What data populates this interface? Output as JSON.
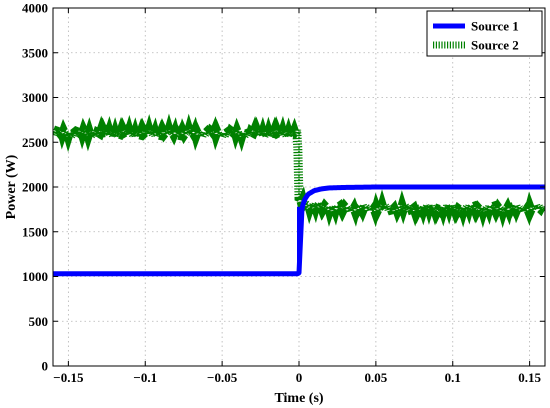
{
  "chart_data": {
    "type": "line",
    "xlabel": "Time (s)",
    "ylabel": "Power (W)",
    "xlim": [
      -0.16,
      0.16
    ],
    "ylim": [
      0,
      4000
    ],
    "x_ticks": [
      -0.15,
      -0.1,
      -0.05,
      0,
      0.05,
      0.1,
      0.15
    ],
    "x_tick_labels": [
      "−0.15",
      "−0.1",
      "−0.05",
      "0",
      "0.05",
      "0.1",
      "0.15"
    ],
    "y_ticks": [
      0,
      500,
      1000,
      1500,
      2000,
      2500,
      3000,
      3500,
      4000
    ],
    "y_tick_labels": [
      "0",
      "500",
      "1000",
      "1500",
      "2000",
      "2500",
      "3000",
      "3500",
      "4000"
    ],
    "grid": true,
    "legend_position": "top-right",
    "series": [
      {
        "name": "Source 1",
        "color": "#0000ff",
        "style": "solid-thick",
        "x": [
          -0.16,
          -0.001,
          0,
          0.002,
          0.004,
          0.006,
          0.01,
          0.015,
          0.02,
          0.03,
          0.05,
          0.1,
          0.16
        ],
        "y": [
          1030,
          1030,
          1040,
          1780,
          1870,
          1920,
          1960,
          1980,
          1990,
          1995,
          2000,
          2000,
          2000
        ]
      },
      {
        "name": "Source 2",
        "color": "#008000",
        "style": "dotted-noisy",
        "x": [
          -0.16,
          -0.001,
          0,
          0.002,
          0.004,
          0.006,
          0.01,
          0.02,
          0.03,
          0.05,
          0.1,
          0.16
        ],
        "y": [
          2600,
          2600,
          1870,
          1830,
          1810,
          1800,
          1790,
          1770,
          1760,
          1760,
          1760,
          1760
        ],
        "noise_amplitude": 40
      }
    ]
  }
}
